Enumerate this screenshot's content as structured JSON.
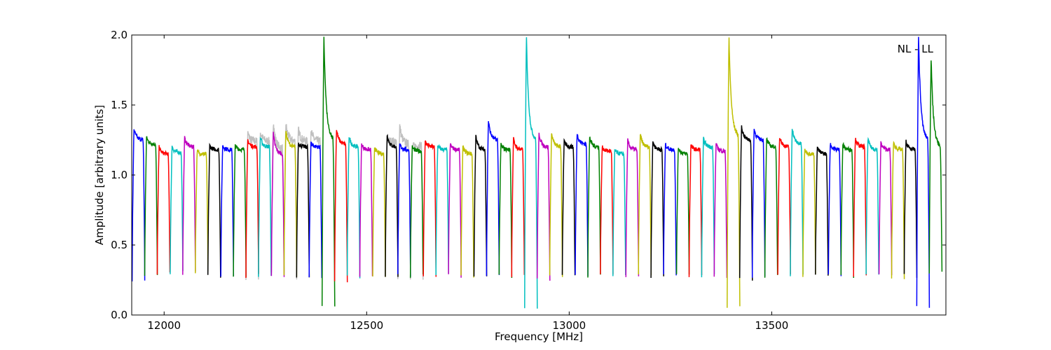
{
  "chart_data": {
    "type": "line",
    "xlabel": "Frequency [MHz]",
    "ylabel": "Amplitude [arbitrary units]",
    "annotation": "NL - LL",
    "annotation_position": "top-right",
    "xlim": [
      11920,
      13930
    ],
    "ylim": [
      0.0,
      2.0
    ],
    "xticks": [
      12000,
      12500,
      13000,
      13500
    ],
    "yticks": [
      0.0,
      0.5,
      1.0,
      1.5,
      2.0
    ],
    "ytick_labels": [
      "0.0",
      "0.5",
      "1.0",
      "1.5",
      "2.0"
    ],
    "grid": false,
    "subband_width_mhz": 31.25,
    "colors": [
      "#0000ff",
      "#008000",
      "#ff0000",
      "#00bfbf",
      "#bf00bf",
      "#bfbf00",
      "#000000"
    ],
    "background_series_color": "#c0c0c0",
    "subbands": [
      {
        "start": 11921,
        "color": "#0000ff",
        "plateau": 1.25,
        "peak": 1.33,
        "low": 0.25
      },
      {
        "start": 11952,
        "color": "#008000",
        "plateau": 1.22,
        "peak": 1.27,
        "low": 0.28
      },
      {
        "start": 11983,
        "color": "#ff0000",
        "plateau": 1.15,
        "peak": 1.2,
        "low": 0.3
      },
      {
        "start": 12015,
        "color": "#00bfbf",
        "plateau": 1.16,
        "peak": 1.2,
        "low": 0.3
      },
      {
        "start": 12046,
        "color": "#bf00bf",
        "plateau": 1.2,
        "peak": 1.27,
        "low": 0.3
      },
      {
        "start": 12077,
        "color": "#bfbf00",
        "plateau": 1.15,
        "peak": 1.17,
        "low": 0.3
      },
      {
        "start": 12108,
        "color": "#000000",
        "plateau": 1.18,
        "peak": 1.21,
        "low": 0.28
      },
      {
        "start": 12140,
        "color": "#0000ff",
        "plateau": 1.18,
        "peak": 1.21,
        "low": 0.28
      },
      {
        "start": 12171,
        "color": "#008000",
        "plateau": 1.18,
        "peak": 1.21,
        "low": 0.28
      },
      {
        "start": 12202,
        "color": "#ff0000",
        "plateau": 1.2,
        "peak": 1.25,
        "low": 0.28
      },
      {
        "start": 12233,
        "color": "#00bfbf",
        "plateau": 1.2,
        "peak": 1.27,
        "low": 0.28
      },
      {
        "start": 12265,
        "color": "#bf00bf",
        "plateau": 1.15,
        "peak": 1.3,
        "low": 0.28
      },
      {
        "start": 12296,
        "color": "#bfbf00",
        "plateau": 1.2,
        "peak": 1.32,
        "low": 0.27
      },
      {
        "start": 12327,
        "color": "#000000",
        "plateau": 1.2,
        "peak": 1.23,
        "low": 0.27
      },
      {
        "start": 12358,
        "color": "#0000ff",
        "plateau": 1.2,
        "peak": 1.23,
        "low": 0.27
      },
      {
        "start": 12390,
        "color": "#008000",
        "plateau": 1.25,
        "peak": 2.0,
        "low": 0.05
      },
      {
        "start": 12421,
        "color": "#ff0000",
        "plateau": 1.22,
        "peak": 1.33,
        "low": 0.24
      },
      {
        "start": 12452,
        "color": "#00bfbf",
        "plateau": 1.2,
        "peak": 1.28,
        "low": 0.27
      },
      {
        "start": 12483,
        "color": "#bf00bf",
        "plateau": 1.18,
        "peak": 1.22,
        "low": 0.28
      },
      {
        "start": 12515,
        "color": "#bfbf00",
        "plateau": 1.15,
        "peak": 1.2,
        "low": 0.28
      },
      {
        "start": 12546,
        "color": "#000000",
        "plateau": 1.2,
        "peak": 1.29,
        "low": 0.28
      },
      {
        "start": 12577,
        "color": "#0000ff",
        "plateau": 1.18,
        "peak": 1.22,
        "low": 0.28
      },
      {
        "start": 12608,
        "color": "#008000",
        "plateau": 1.17,
        "peak": 1.2,
        "low": 0.28
      },
      {
        "start": 12640,
        "color": "#ff0000",
        "plateau": 1.2,
        "peak": 1.24,
        "low": 0.28
      },
      {
        "start": 12671,
        "color": "#00bfbf",
        "plateau": 1.18,
        "peak": 1.21,
        "low": 0.28
      },
      {
        "start": 12702,
        "color": "#bf00bf",
        "plateau": 1.18,
        "peak": 1.22,
        "low": 0.28
      },
      {
        "start": 12733,
        "color": "#bfbf00",
        "plateau": 1.15,
        "peak": 1.2,
        "low": 0.28
      },
      {
        "start": 12765,
        "color": "#000000",
        "plateau": 1.18,
        "peak": 1.28,
        "low": 0.28
      },
      {
        "start": 12796,
        "color": "#0000ff",
        "plateau": 1.25,
        "peak": 1.39,
        "low": 0.28
      },
      {
        "start": 12827,
        "color": "#008000",
        "plateau": 1.18,
        "peak": 1.22,
        "low": 0.28
      },
      {
        "start": 12858,
        "color": "#ff0000",
        "plateau": 1.18,
        "peak": 1.26,
        "low": 0.28
      },
      {
        "start": 12890,
        "color": "#00bfbf",
        "plateau": 1.25,
        "peak": 2.0,
        "low": 0.05
      },
      {
        "start": 12921,
        "color": "#bf00bf",
        "plateau": 1.2,
        "peak": 1.3,
        "low": 0.25
      },
      {
        "start": 12952,
        "color": "#bfbf00",
        "plateau": 1.2,
        "peak": 1.3,
        "low": 0.28
      },
      {
        "start": 12983,
        "color": "#000000",
        "plateau": 1.2,
        "peak": 1.24,
        "low": 0.28
      },
      {
        "start": 13015,
        "color": "#0000ff",
        "plateau": 1.22,
        "peak": 1.3,
        "low": 0.28
      },
      {
        "start": 13046,
        "color": "#008000",
        "plateau": 1.2,
        "peak": 1.27,
        "low": 0.28
      },
      {
        "start": 13077,
        "color": "#ff0000",
        "plateau": 1.17,
        "peak": 1.2,
        "low": 0.28
      },
      {
        "start": 13108,
        "color": "#00bfbf",
        "plateau": 1.15,
        "peak": 1.18,
        "low": 0.28
      },
      {
        "start": 13140,
        "color": "#bf00bf",
        "plateau": 1.18,
        "peak": 1.25,
        "low": 0.28
      },
      {
        "start": 13171,
        "color": "#bfbf00",
        "plateau": 1.2,
        "peak": 1.29,
        "low": 0.28
      },
      {
        "start": 13202,
        "color": "#000000",
        "plateau": 1.18,
        "peak": 1.24,
        "low": 0.28
      },
      {
        "start": 13233,
        "color": "#0000ff",
        "plateau": 1.18,
        "peak": 1.22,
        "low": 0.28
      },
      {
        "start": 13265,
        "color": "#008000",
        "plateau": 1.15,
        "peak": 1.2,
        "low": 0.28
      },
      {
        "start": 13296,
        "color": "#ff0000",
        "plateau": 1.18,
        "peak": 1.21,
        "low": 0.28
      },
      {
        "start": 13327,
        "color": "#00bfbf",
        "plateau": 1.2,
        "peak": 1.26,
        "low": 0.28
      },
      {
        "start": 13358,
        "color": "#bf00bf",
        "plateau": 1.17,
        "peak": 1.22,
        "low": 0.28
      },
      {
        "start": 13390,
        "color": "#bfbf00",
        "plateau": 1.28,
        "peak": 2.0,
        "low": 0.05
      },
      {
        "start": 13421,
        "color": "#000000",
        "plateau": 1.25,
        "peak": 1.35,
        "low": 0.25
      },
      {
        "start": 13452,
        "color": "#0000ff",
        "plateau": 1.25,
        "peak": 1.33,
        "low": 0.28
      },
      {
        "start": 13483,
        "color": "#008000",
        "plateau": 1.2,
        "peak": 1.26,
        "low": 0.28
      },
      {
        "start": 13515,
        "color": "#ff0000",
        "plateau": 1.2,
        "peak": 1.28,
        "low": 0.28
      },
      {
        "start": 13546,
        "color": "#00bfbf",
        "plateau": 1.22,
        "peak": 1.34,
        "low": 0.28
      },
      {
        "start": 13577,
        "color": "#bfbf00",
        "plateau": 1.15,
        "peak": 1.18,
        "low": 0.28
      },
      {
        "start": 13608,
        "color": "#000000",
        "plateau": 1.15,
        "peak": 1.2,
        "low": 0.28
      },
      {
        "start": 13640,
        "color": "#0000ff",
        "plateau": 1.18,
        "peak": 1.22,
        "low": 0.28
      },
      {
        "start": 13671,
        "color": "#008000",
        "plateau": 1.18,
        "peak": 1.22,
        "low": 0.28
      },
      {
        "start": 13702,
        "color": "#ff0000",
        "plateau": 1.2,
        "peak": 1.26,
        "low": 0.28
      },
      {
        "start": 13733,
        "color": "#00bfbf",
        "plateau": 1.18,
        "peak": 1.26,
        "low": 0.28
      },
      {
        "start": 13765,
        "color": "#bf00bf",
        "plateau": 1.18,
        "peak": 1.23,
        "low": 0.28
      },
      {
        "start": 13796,
        "color": "#bfbf00",
        "plateau": 1.18,
        "peak": 1.23,
        "low": 0.27
      },
      {
        "start": 13827,
        "color": "#000000",
        "plateau": 1.18,
        "peak": 1.24,
        "low": 0.28
      },
      {
        "start": 13858,
        "color": "#0000ff",
        "plateau": 1.25,
        "peak": 2.0,
        "low": 0.05
      },
      {
        "start": 13889,
        "color": "#008000",
        "plateau": 1.2,
        "peak": 1.85,
        "low": 0.3
      }
    ],
    "background_bumps": [
      {
        "start": 12202,
        "peak": 1.3
      },
      {
        "start": 12233,
        "peak": 1.31
      },
      {
        "start": 12265,
        "peak": 1.38
      },
      {
        "start": 12296,
        "peak": 1.37
      },
      {
        "start": 12327,
        "peak": 1.33
      },
      {
        "start": 12358,
        "peak": 1.32
      },
      {
        "start": 12546,
        "peak": 1.25
      },
      {
        "start": 12577,
        "peak": 1.36
      },
      {
        "start": 12608,
        "peak": 1.2
      }
    ]
  }
}
